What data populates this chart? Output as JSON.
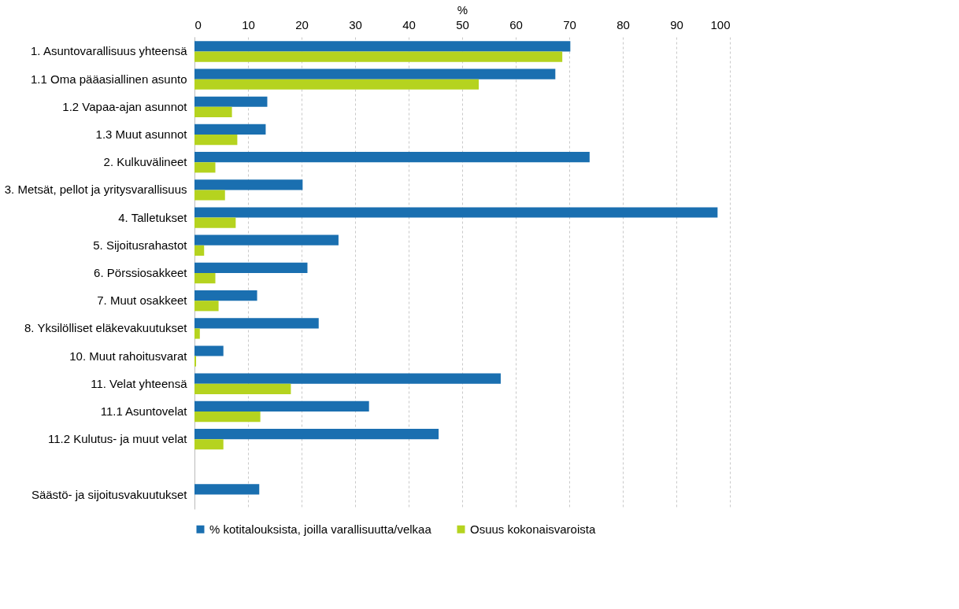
{
  "chart_data": {
    "type": "bar",
    "orientation": "horizontal",
    "xlabel": "%",
    "categories": [
      "1. Asuntovarallisuus yhteensä",
      "1.1 Oma pääasiallinen asunto",
      "1.2 Vapaa-ajan asunnot",
      "1.3 Muut asunnot",
      "2. Kulkuvälineet",
      "3. Metsät, pellot ja yritysvarallisuus",
      "4. Talletukset",
      "5. Sijoitusrahastot",
      "6. Pörssiosakkeet",
      "7. Muut osakkeet",
      "8. Yksilölliset eläkevakuutukset",
      "10. Muut rahoitusvarat",
      "11. Velat yhteensä",
      "11.1 Asuntovelat",
      "11.2 Kulutus- ja muut velat",
      null,
      "Säästö- ja sijoitusvakuutukset"
    ],
    "series": [
      {
        "name": "% kotitalouksista, joilla varallisuutta/velkaa",
        "color": "#1a6fb0",
        "values": [
          70.2,
          67.4,
          13.6,
          13.3,
          73.8,
          20.2,
          97.7,
          26.9,
          21.1,
          11.7,
          23.2,
          5.4,
          57.2,
          32.6,
          45.6,
          null,
          12.1
        ]
      },
      {
        "name": "Osuus kokonaisvaroista",
        "color": "#b5d31f",
        "values": [
          68.7,
          53.1,
          7.0,
          8.0,
          3.9,
          5.7,
          7.7,
          1.8,
          3.9,
          4.5,
          1.0,
          0.3,
          18.0,
          12.3,
          5.4,
          null,
          null
        ]
      }
    ],
    "xlim": [
      0,
      100
    ],
    "xticks": [
      0,
      10,
      20,
      30,
      40,
      50,
      60,
      70,
      80,
      90,
      100
    ],
    "grid": "x",
    "legend": "bottom"
  }
}
